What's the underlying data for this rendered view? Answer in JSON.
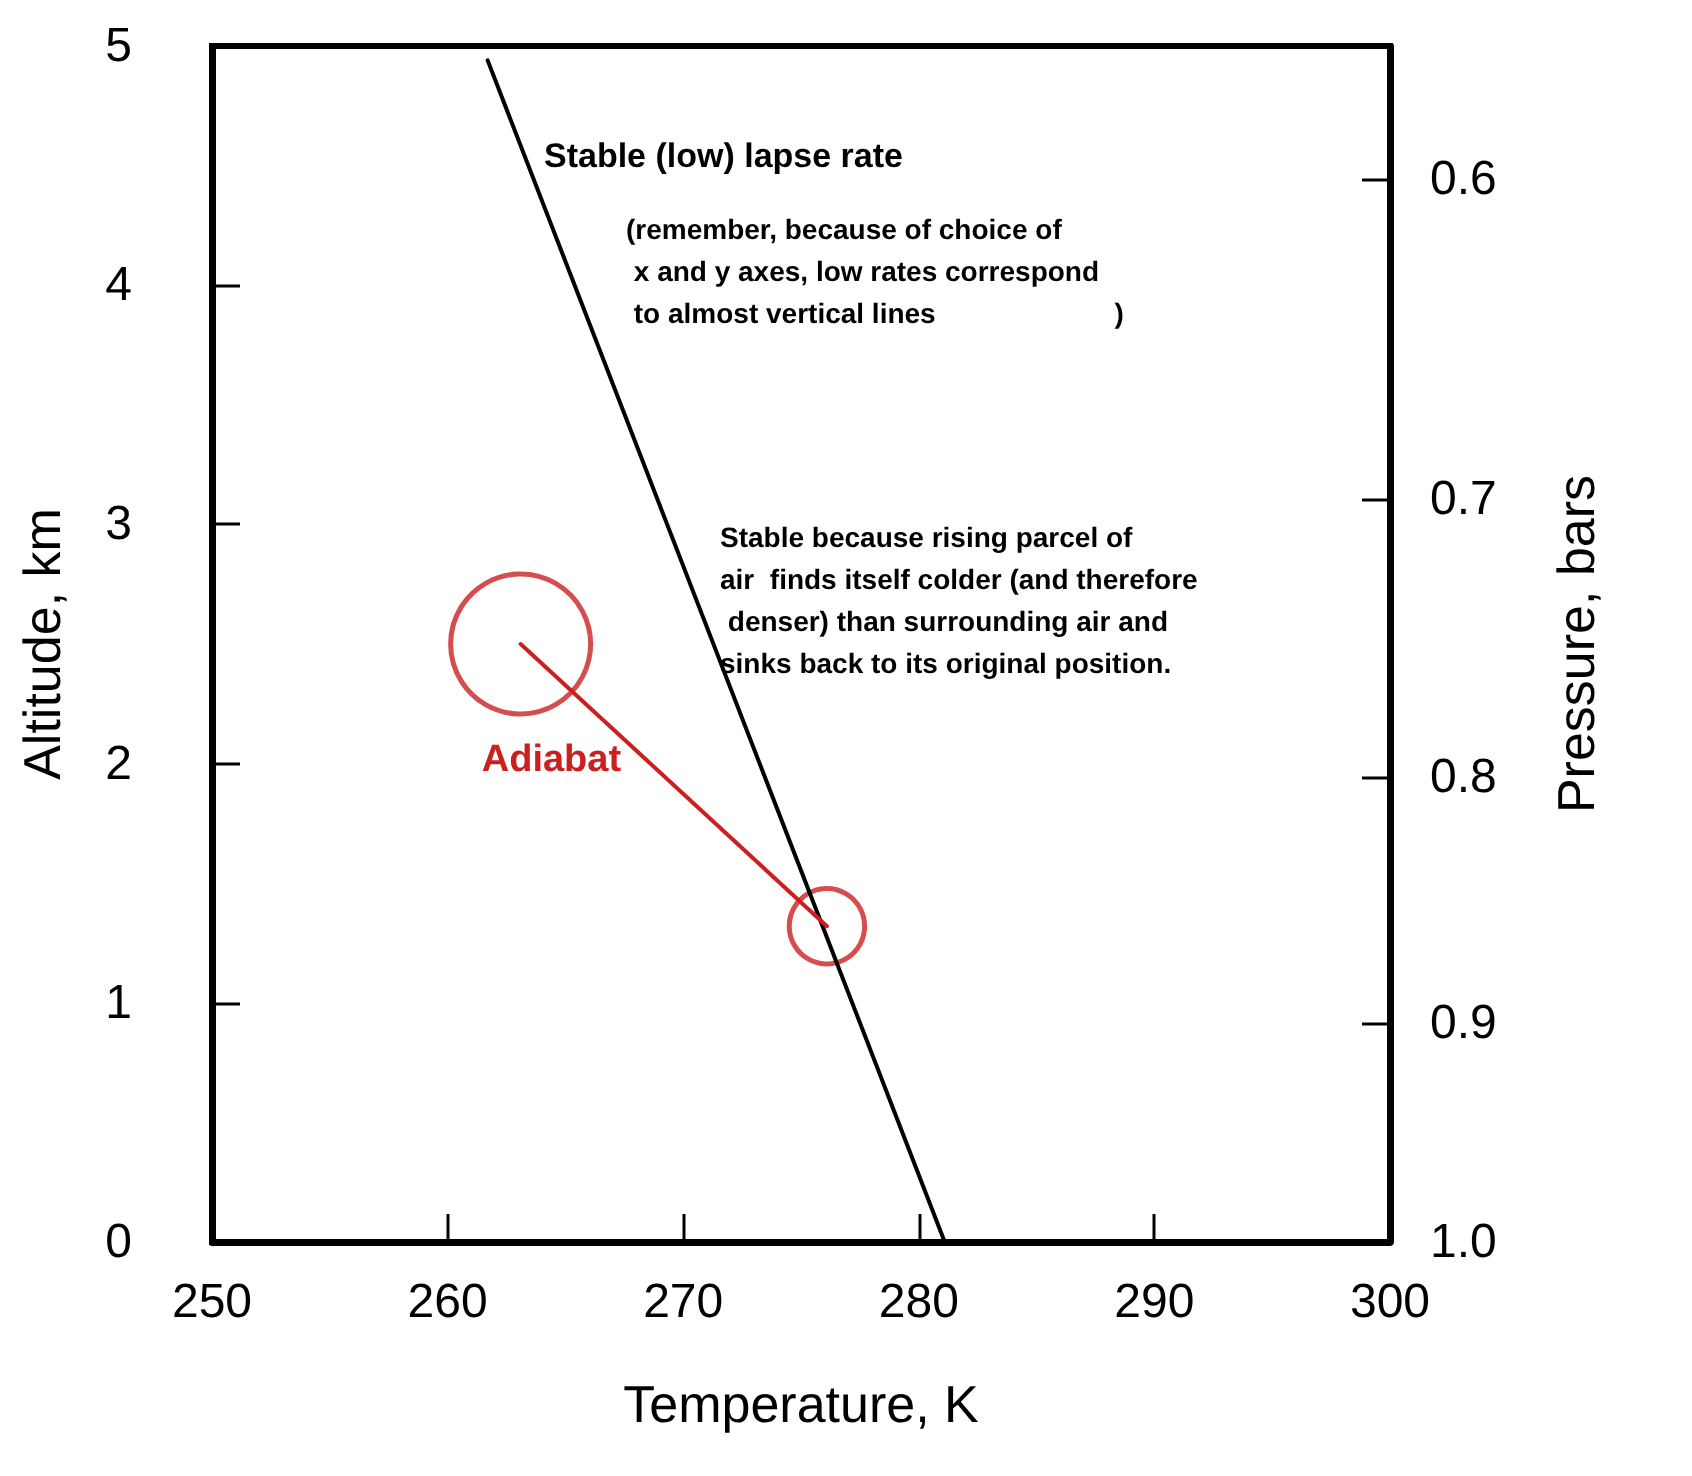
{
  "chart_data": {
    "type": "line",
    "xlabel": "Temperature, K",
    "ylabel": "Altitude, km",
    "y2label": "Pressure, bars",
    "xlim": [
      250,
      300
    ],
    "xticks": [
      250,
      260,
      270,
      280,
      290,
      300
    ],
    "ylim": [
      0,
      5
    ],
    "yticks": [
      0,
      1,
      2,
      3,
      4,
      5
    ],
    "y2lim": [
      1.0,
      0.563
    ],
    "y2ticks": [
      {
        "value": 1,
        "label": "1.0"
      },
      0.9,
      0.8,
      0.7,
      0.6
    ],
    "log": "y2",
    "grid": false,
    "legend": false,
    "line_style": "solid",
    "series": [
      {
        "color": "#000000",
        "marker": "none",
        "x": [
          261.7,
          281.1
        ],
        "values": [
          4.94,
          0
        ]
      },
      {
        "name": "Adiabat",
        "color": "#cc2020",
        "marker": "none",
        "x": [
          263.1,
          276.1
        ],
        "values": [
          2.5,
          1.32
        ]
      },
      {
        "type": "bubble",
        "marker": "circle",
        "color": "#cc2020",
        "x": [
          263.1,
          276.1
        ],
        "values": [
          2.5,
          1.32
        ],
        "sizes": [
          1,
          0.29
        ]
      }
    ],
    "annotations": [
      "Stable (low) lapse rate",
      "(remember, because of choice of\n x and y axes, low rates correspond\n to almost vertical lines                       )",
      "Stable because rising parcel of\nair  finds itself colder (and therefore\n denser) than surrounding air and\nsinks back to its original position."
    ]
  }
}
